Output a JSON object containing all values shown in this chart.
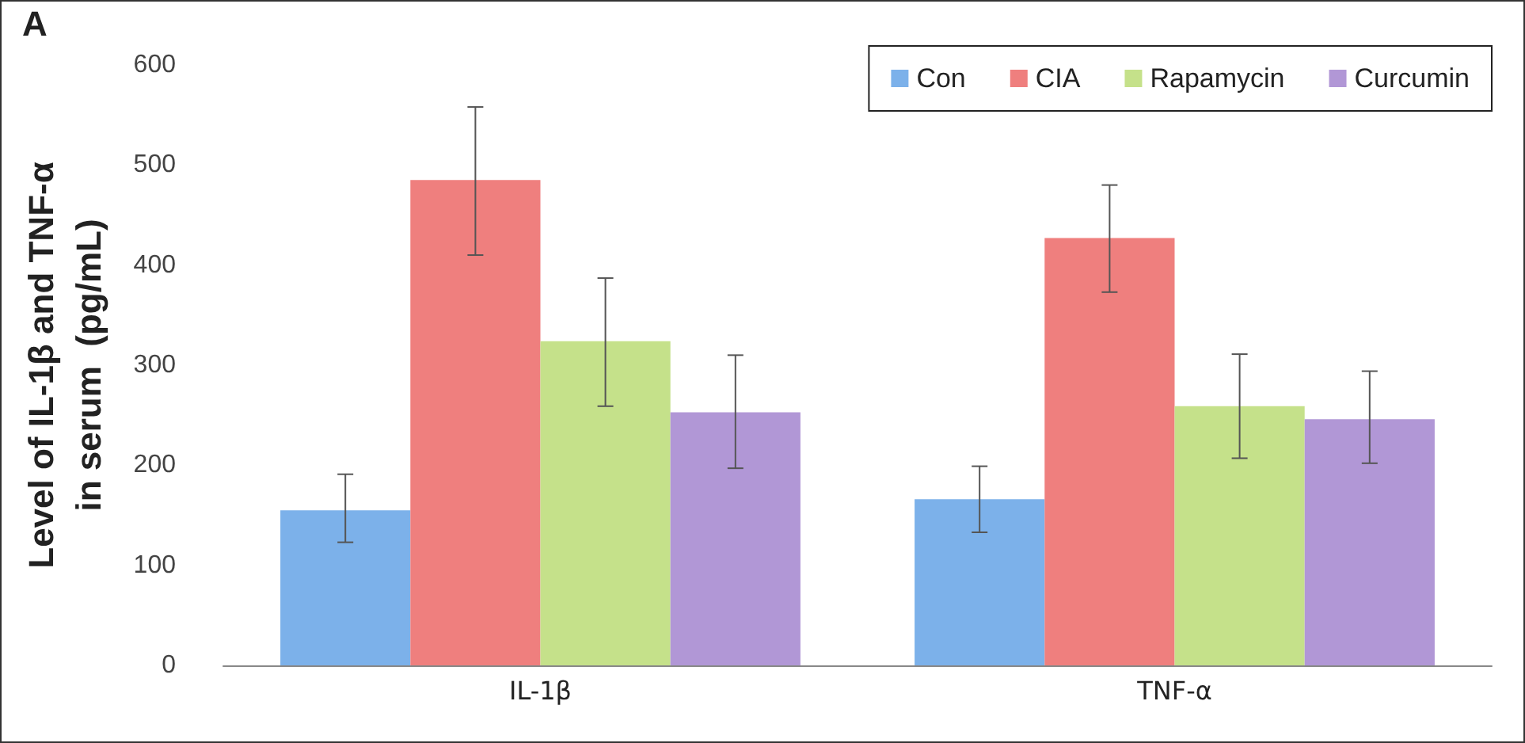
{
  "chart_data": {
    "type": "bar",
    "title": "A",
    "ylabel": "Level of IL-1β and TNF-α\nin serum  (pg/mL)",
    "categories": [
      "IL-1β",
      "TNF-α"
    ],
    "series": [
      {
        "name": "Con",
        "color": "#7cb1ea",
        "values": [
          155,
          166
        ],
        "errors": [
          [
            123,
            191
          ],
          [
            133,
            199
          ]
        ]
      },
      {
        "name": "CIA",
        "color": "#ef7f7e",
        "values": [
          485,
          427
        ],
        "errors": [
          [
            410,
            558
          ],
          [
            373,
            480
          ]
        ]
      },
      {
        "name": "Rapamycin",
        "color": "#c5e18a",
        "values": [
          324,
          259
        ],
        "errors": [
          [
            259,
            387
          ],
          [
            207,
            311
          ]
        ]
      },
      {
        "name": "Curcumin",
        "color": "#b197d6",
        "values": [
          253,
          246
        ],
        "errors": [
          [
            197,
            310
          ],
          [
            202,
            294
          ]
        ]
      }
    ],
    "ylim": [
      0,
      600
    ],
    "yticks": [
      0,
      100,
      200,
      300,
      400,
      500,
      600
    ],
    "grid": false,
    "legend": "top right"
  }
}
